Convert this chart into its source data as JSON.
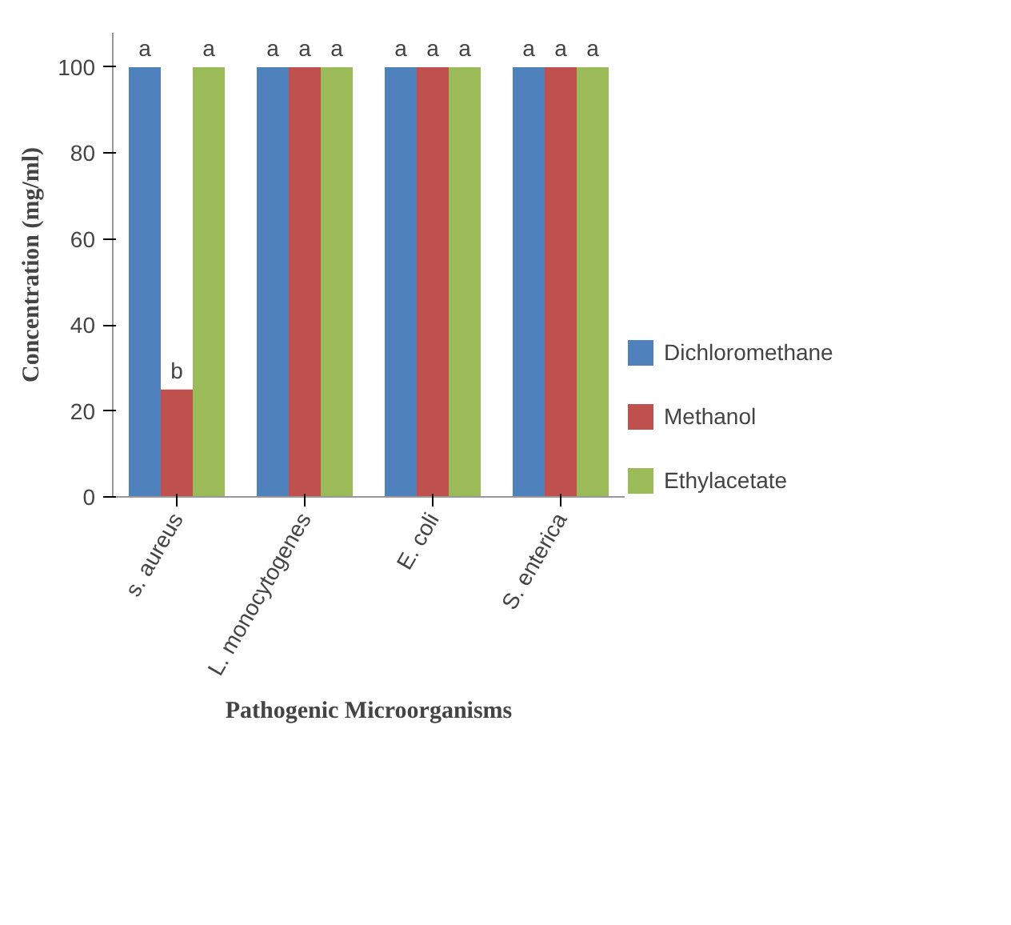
{
  "chart_data": {
    "type": "bar",
    "xlabel": "Pathogenic Microorganisms",
    "ylabel": "Concentration (mg/ml)",
    "categories": [
      "s. aureus",
      "L. monocytogenes",
      "E. coli",
      "S. enterica"
    ],
    "series": [
      {
        "name": "Dichloromethane",
        "color": "#4f81bd",
        "values": [
          100,
          100,
          100,
          100
        ],
        "value_labels": [
          "a",
          "a",
          "a",
          "a"
        ]
      },
      {
        "name": "Methanol",
        "color": "#c0504d",
        "values": [
          25,
          100,
          100,
          100
        ],
        "value_labels": [
          "b",
          "a",
          "a",
          "a"
        ]
      },
      {
        "name": "Ethylacetate",
        "color": "#9bbb59",
        "values": [
          100,
          100,
          100,
          100
        ],
        "value_labels": [
          "a",
          "a",
          "a",
          "a"
        ]
      }
    ],
    "ylim": [
      0,
      100
    ],
    "yticks": [
      0,
      20,
      40,
      60,
      80,
      100
    ],
    "grid": false,
    "legend": "right"
  }
}
